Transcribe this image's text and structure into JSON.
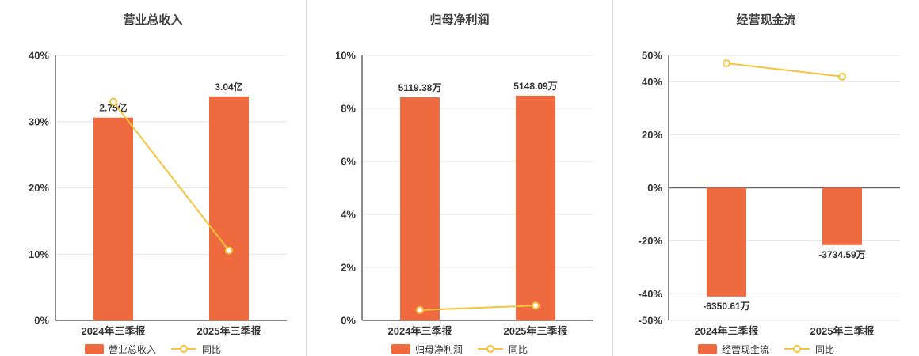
{
  "colors": {
    "bar": "#ef6a3f",
    "line": "#f6c33d",
    "grid": "#e6e6e6",
    "axis": "#666666",
    "divider": "#d9d9d9",
    "title": "#404040",
    "text": "#333333"
  },
  "chart_data": [
    {
      "type": "bar",
      "title": "营业总收入",
      "categories": [
        "2024年三季报",
        "2025年三季报"
      ],
      "ylim": [
        0,
        40
      ],
      "y_ticks": [
        40,
        30,
        20,
        10,
        0
      ],
      "grid": true,
      "legend_position": "bottom",
      "bar_series": {
        "name": "营业总收入",
        "labels": [
          "2.75亿",
          "3.04亿"
        ],
        "axis_values": [
          30.6,
          33.8
        ]
      },
      "line_series": {
        "name": "同比",
        "values": [
          33.0,
          10.55
        ]
      }
    },
    {
      "type": "bar",
      "title": "归母净利润",
      "categories": [
        "2024年三季报",
        "2025年三季报"
      ],
      "ylim": [
        0,
        10
      ],
      "y_ticks": [
        10,
        8,
        6,
        4,
        2,
        0
      ],
      "grid": true,
      "legend_position": "bottom",
      "bar_series": {
        "name": "归母净利润",
        "labels": [
          "5119.38万",
          "5148.09万"
        ],
        "axis_values": [
          8.42,
          8.48
        ]
      },
      "line_series": {
        "name": "同比",
        "values": [
          0.39,
          0.56
        ]
      }
    },
    {
      "type": "bar",
      "title": "经营现金流",
      "categories": [
        "2024年三季报",
        "2025年三季报"
      ],
      "ylim": [
        -50,
        50
      ],
      "y_ticks": [
        50,
        40,
        20,
        0,
        -20,
        -40,
        -50
      ],
      "grid": true,
      "legend_position": "bottom",
      "bar_series": {
        "name": "经营现金流",
        "labels": [
          "-6350.61万",
          "-3734.59万"
        ],
        "axis_values": [
          -41.0,
          -21.6
        ]
      },
      "line_series": {
        "name": "同比",
        "values": [
          47.0,
          42.0
        ]
      }
    }
  ]
}
